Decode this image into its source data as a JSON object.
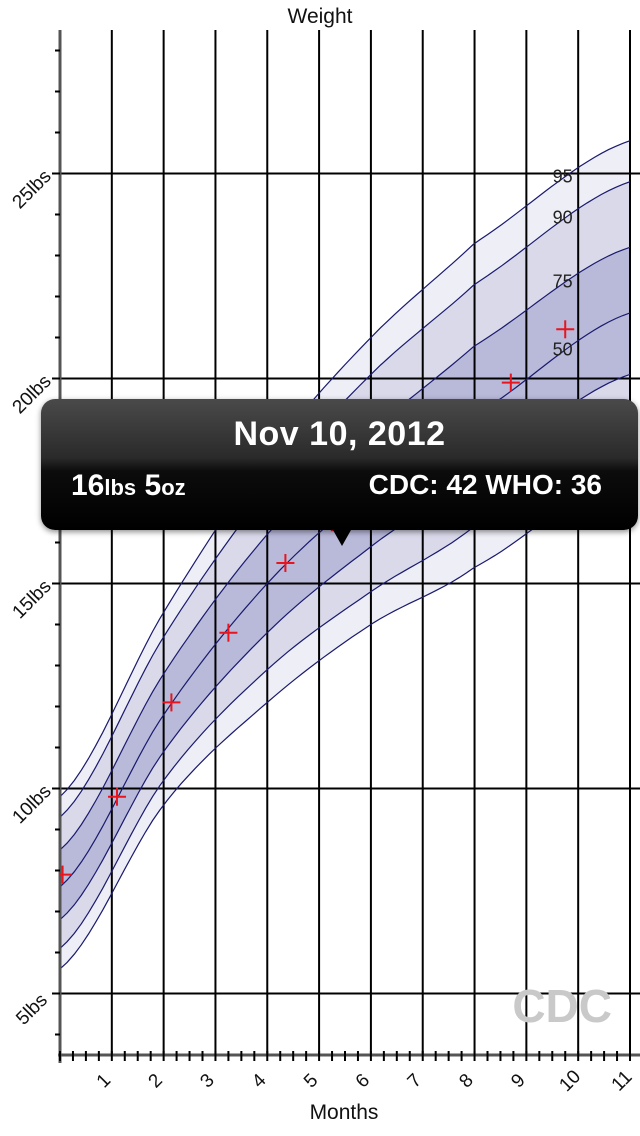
{
  "chart_data": {
    "type": "area",
    "title": "Weight",
    "xlabel": "Months",
    "ylabel": "",
    "xlim": [
      0,
      11
    ],
    "ylim": [
      3.5,
      28.5
    ],
    "x_ticks": [
      {
        "value": 1,
        "label": "1"
      },
      {
        "value": 2,
        "label": "2"
      },
      {
        "value": 3,
        "label": "3"
      },
      {
        "value": 4,
        "label": "4"
      },
      {
        "value": 5,
        "label": "5"
      },
      {
        "value": 6,
        "label": "6"
      },
      {
        "value": 7,
        "label": "7"
      },
      {
        "value": 8,
        "label": "8"
      },
      {
        "value": 9,
        "label": "9"
      },
      {
        "value": 10,
        "label": "10"
      },
      {
        "value": 11,
        "label": "11"
      }
    ],
    "y_ticks": [
      {
        "value": 5,
        "label": "5lbs"
      },
      {
        "value": 10,
        "label": "10lbs"
      },
      {
        "value": 15,
        "label": "15lbs"
      },
      {
        "value": 20,
        "label": "20lbs"
      },
      {
        "value": 25,
        "label": "25lbs"
      }
    ],
    "grid": true,
    "percentile_curves": [
      {
        "label": "",
        "x": [
          0,
          2,
          4,
          6,
          8,
          11
        ],
        "values": [
          5.6,
          9.6,
          12.1,
          14.0,
          15.4,
          17.8
        ]
      },
      {
        "label": "",
        "x": [
          0,
          2,
          4,
          6,
          8,
          11
        ],
        "values": [
          6.1,
          10.2,
          12.9,
          14.8,
          16.4,
          18.9
        ]
      },
      {
        "label": "",
        "x": [
          0,
          2,
          4,
          6,
          8,
          11
        ],
        "values": [
          6.8,
          10.9,
          13.8,
          15.9,
          17.7,
          20.1
        ]
      },
      {
        "label": "50",
        "x": [
          0,
          2,
          4,
          6,
          8,
          11
        ],
        "values": [
          7.6,
          11.8,
          15.0,
          17.3,
          19.1,
          21.6
        ]
      },
      {
        "label": "75",
        "x": [
          0,
          2,
          4,
          6,
          8,
          11
        ],
        "values": [
          8.5,
          12.8,
          16.2,
          18.7,
          20.8,
          23.2
        ]
      },
      {
        "label": "90",
        "x": [
          0,
          2,
          4,
          6,
          8,
          11
        ],
        "values": [
          9.3,
          13.7,
          17.3,
          20.1,
          22.3,
          24.8
        ]
      },
      {
        "label": "95",
        "x": [
          0,
          2,
          4,
          6,
          8,
          11
        ],
        "values": [
          9.8,
          14.3,
          18.1,
          21.0,
          23.3,
          25.8
        ]
      }
    ],
    "band_colors": [
      "#eeeef6",
      "#d9d9ea",
      "#b9b9d9"
    ],
    "curve_color": "#1a1a6e",
    "measurements": {
      "name": "",
      "color": "#e8141e",
      "x": [
        0.05,
        1.1,
        2.15,
        3.25,
        4.35,
        5.4,
        8.7,
        9.75
      ],
      "values": [
        7.9,
        9.8,
        12.1,
        13.8,
        15.5,
        16.3,
        19.9,
        21.2
      ]
    },
    "watermark": "CDC"
  },
  "tooltip": {
    "date": "Nov 10, 2012",
    "lbs_value": "16",
    "lbs_unit": "lbs",
    "oz_value": "5",
    "oz_unit": "oz",
    "scores": "CDC: 42 WHO: 36"
  }
}
